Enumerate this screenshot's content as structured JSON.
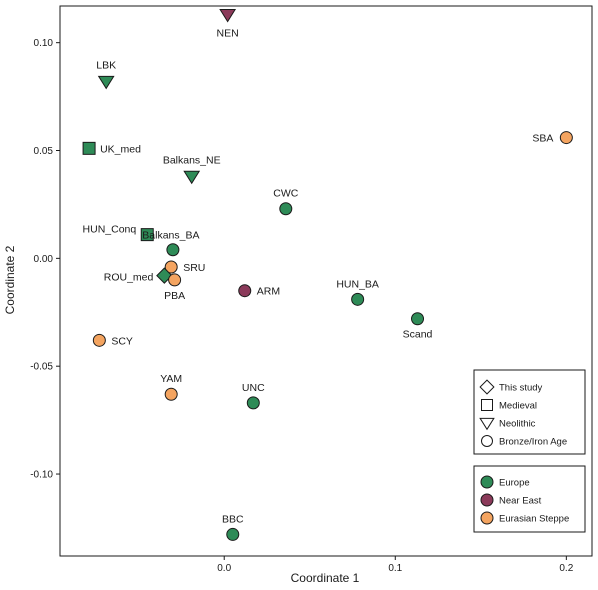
{
  "chart_data": {
    "type": "scatter",
    "xlabel": "Coordinate 1",
    "ylabel": "Coordinate 2",
    "xlim": [
      -0.096,
      0.215
    ],
    "ylim": [
      -0.138,
      0.117
    ],
    "x_ticks": [
      0.0,
      0.1,
      0.2
    ],
    "y_ticks": [
      0.1,
      0.05,
      0.0,
      -0.05,
      -0.1
    ],
    "x_tick_labels": [
      "0.0",
      "0.1",
      "0.2"
    ],
    "y_tick_labels": [
      "0.10",
      "0.05",
      "0.00",
      "-0.05",
      "-0.10"
    ],
    "grid": false,
    "colors": {
      "Europe": "#2e8b57",
      "Near East": "#8b3a5a",
      "Eurasian Steppe": "#f4a460"
    },
    "points": [
      {
        "label": "NEN",
        "x": 0.002,
        "y": 0.113,
        "shape": "triangle",
        "region": "Near East"
      },
      {
        "label": "LBK",
        "x": -0.069,
        "y": 0.082,
        "shape": "triangle",
        "region": "Europe"
      },
      {
        "label": "UK_med",
        "x": -0.079,
        "y": 0.051,
        "shape": "square",
        "region": "Europe"
      },
      {
        "label": "Balkans_NE",
        "x": -0.019,
        "y": 0.038,
        "shape": "triangle",
        "region": "Europe"
      },
      {
        "label": "SBA",
        "x": 0.2,
        "y": 0.056,
        "shape": "circle",
        "region": "Eurasian Steppe"
      },
      {
        "label": "CWC",
        "x": 0.036,
        "y": 0.023,
        "shape": "circle",
        "region": "Europe"
      },
      {
        "label": "HUN_Conq",
        "x": -0.045,
        "y": 0.011,
        "shape": "square",
        "region": "Europe"
      },
      {
        "label": "Balkans_BA",
        "x": -0.03,
        "y": 0.004,
        "shape": "circle",
        "region": "Europe"
      },
      {
        "label": "SRU",
        "x": -0.031,
        "y": -0.004,
        "shape": "circle",
        "region": "Eurasian Steppe"
      },
      {
        "label": "ROU_med",
        "x": -0.035,
        "y": -0.008,
        "shape": "diamond",
        "region": "Europe"
      },
      {
        "label": "PBA",
        "x": -0.029,
        "y": -0.01,
        "shape": "circle",
        "region": "Eurasian Steppe"
      },
      {
        "label": "ARM",
        "x": 0.012,
        "y": -0.015,
        "shape": "circle",
        "region": "Near East"
      },
      {
        "label": "HUN_BA",
        "x": 0.078,
        "y": -0.019,
        "shape": "circle",
        "region": "Europe"
      },
      {
        "label": "Scand",
        "x": 0.113,
        "y": -0.028,
        "shape": "circle",
        "region": "Europe"
      },
      {
        "label": "SCY",
        "x": -0.073,
        "y": -0.038,
        "shape": "circle",
        "region": "Eurasian Steppe"
      },
      {
        "label": "YAM",
        "x": -0.031,
        "y": -0.063,
        "shape": "circle",
        "region": "Eurasian Steppe"
      },
      {
        "label": "UNC",
        "x": 0.017,
        "y": -0.067,
        "shape": "circle",
        "region": "Europe"
      },
      {
        "label": "BBC",
        "x": 0.005,
        "y": -0.128,
        "shape": "circle",
        "region": "Europe"
      }
    ],
    "legend_shapes": [
      {
        "label": "This study",
        "shape": "diamond"
      },
      {
        "label": "Medieval",
        "shape": "square"
      },
      {
        "label": "Neolithic",
        "shape": "triangle"
      },
      {
        "label": "Bronze/Iron Age",
        "shape": "circle"
      }
    ],
    "legend_regions": [
      {
        "label": "Europe",
        "color": "#2e8b57"
      },
      {
        "label": "Near East",
        "color": "#8b3a5a"
      },
      {
        "label": "Eurasian Steppe",
        "color": "#f4a460"
      }
    ],
    "legend_placement": "bottom-right"
  }
}
